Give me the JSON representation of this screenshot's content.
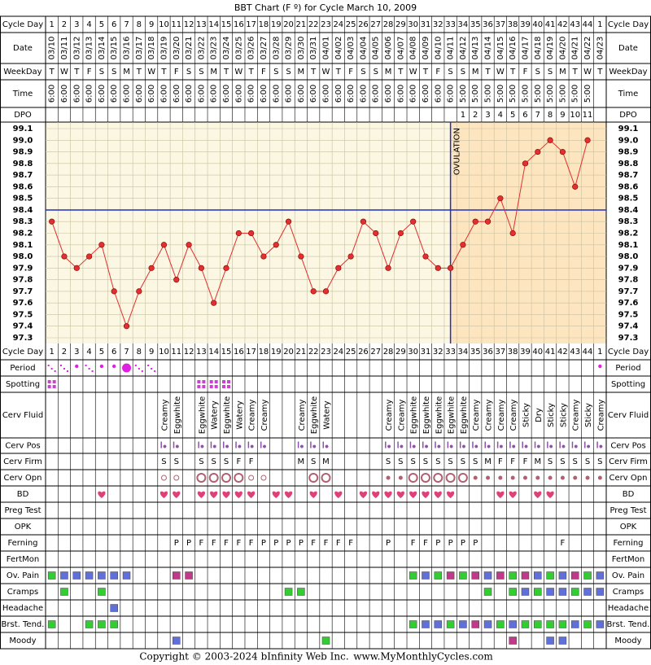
{
  "title": "BBT Chart (F º) for Cycle March 10, 2009",
  "row_labels": {
    "cycle_day": "Cycle Day",
    "date": "Date",
    "weekday": "WeekDay",
    "time": "Time",
    "dpo": "DPO",
    "period": "Period",
    "spotting": "Spotting",
    "cerv_fluid": "Cerv Fluid",
    "cerv_pos": "Cerv Pos",
    "cerv_firm": "Cerv Firm",
    "cerv_opn": "Cerv Opn",
    "bd": "BD",
    "preg_test": "Preg Test",
    "opk": "OPK",
    "ferning": "Ferning",
    "fertmon": "FertMon",
    "ov_pain": "Ov. Pain",
    "cramps": "Cramps",
    "headache": "Headache",
    "brst_tend": "Brst. Tend.",
    "moody": "Moody"
  },
  "columns": {
    "cycle_day": [
      1,
      2,
      3,
      4,
      5,
      6,
      7,
      8,
      9,
      10,
      11,
      12,
      13,
      14,
      15,
      16,
      17,
      18,
      19,
      20,
      21,
      22,
      23,
      24,
      25,
      26,
      27,
      28,
      29,
      30,
      31,
      32,
      33,
      34,
      35,
      36,
      37,
      38,
      39,
      40,
      41,
      42,
      43,
      44,
      1
    ],
    "date": [
      "03/10",
      "03/11",
      "03/12",
      "03/13",
      "03/14",
      "03/15",
      "03/16",
      "03/17",
      "03/18",
      "03/19",
      "03/20",
      "03/21",
      "03/22",
      "03/23",
      "03/24",
      "03/25",
      "03/26",
      "03/27",
      "03/28",
      "03/29",
      "03/30",
      "03/31",
      "04/01",
      "04/02",
      "04/03",
      "04/04",
      "04/05",
      "04/06",
      "04/07",
      "04/08",
      "04/09",
      "04/10",
      "04/11",
      "04/12",
      "04/13",
      "04/14",
      "04/15",
      "04/16",
      "04/17",
      "04/18",
      "04/19",
      "04/20",
      "04/21",
      "04/22",
      "04/23"
    ],
    "weekday": [
      "T",
      "W",
      "T",
      "F",
      "S",
      "S",
      "M",
      "T",
      "W",
      "T",
      "F",
      "S",
      "S",
      "M",
      "T",
      "W",
      "T",
      "F",
      "S",
      "S",
      "M",
      "T",
      "W",
      "T",
      "F",
      "S",
      "S",
      "M",
      "T",
      "W",
      "T",
      "F",
      "S",
      "S",
      "M",
      "T",
      "W",
      "T",
      "F",
      "S",
      "S",
      "M",
      "T",
      "W",
      "T"
    ],
    "time": [
      "6:00",
      "6:00",
      "6:00",
      "6:00",
      "6:00",
      "6:00",
      "6:00",
      "6:00",
      "6:00",
      "6:00",
      "6:00",
      "6:00",
      "6:00",
      "6:00",
      "6:00",
      "6:00",
      "6:00",
      "6:00",
      "6:00",
      "6:00",
      "6:00",
      "6:00",
      "6:00",
      "6:00",
      "6:00",
      "6:00",
      "6:00",
      "6:00",
      "6:00",
      "6:00",
      "6:00",
      "6:00",
      "6:00",
      "5:00",
      "5:00",
      "5:00",
      "5:00",
      "5:00",
      "5:00",
      "5:00",
      "5:00",
      "5:00",
      "5:00",
      "5:00",
      null
    ],
    "dpo": [
      null,
      null,
      null,
      null,
      null,
      null,
      null,
      null,
      null,
      null,
      null,
      null,
      null,
      null,
      null,
      null,
      null,
      null,
      null,
      null,
      null,
      null,
      null,
      null,
      null,
      null,
      null,
      null,
      null,
      null,
      null,
      null,
      null,
      1,
      2,
      3,
      4,
      5,
      6,
      7,
      8,
      9,
      10,
      11,
      null
    ]
  },
  "chart_data": {
    "type": "line",
    "color": "#e03030",
    "categories": [
      "03/10",
      "03/11",
      "03/12",
      "03/13",
      "03/14",
      "03/15",
      "03/16",
      "03/17",
      "03/18",
      "03/19",
      "03/20",
      "03/21",
      "03/22",
      "03/23",
      "03/24",
      "03/25",
      "03/26",
      "03/27",
      "03/28",
      "03/29",
      "03/30",
      "03/31",
      "04/01",
      "04/02",
      "04/03",
      "04/04",
      "04/05",
      "04/06",
      "04/07",
      "04/08",
      "04/09",
      "04/10",
      "04/11",
      "04/12",
      "04/13",
      "04/14",
      "04/15",
      "04/16",
      "04/17",
      "04/18",
      "04/19",
      "04/20",
      "04/21",
      "04/22",
      "04/23"
    ],
    "values": [
      98.3,
      98.0,
      97.9,
      98.0,
      98.1,
      97.7,
      97.4,
      97.7,
      97.9,
      98.1,
      97.8,
      98.1,
      97.9,
      97.6,
      97.9,
      98.2,
      98.2,
      98.0,
      98.1,
      98.3,
      98.0,
      97.7,
      97.7,
      97.9,
      98.0,
      98.3,
      98.2,
      97.9,
      98.2,
      98.3,
      98.0,
      97.9,
      97.9,
      98.1,
      98.3,
      98.3,
      98.5,
      98.2,
      98.8,
      98.9,
      99.0,
      98.9,
      98.6,
      99.0,
      null
    ],
    "ylim": [
      97.3,
      99.1
    ],
    "yticks": [
      99.1,
      {
        "value": 99,
        "label": "99.0"
      },
      98.9,
      98.8,
      98.7,
      98.6,
      98.5,
      98.4,
      98.3,
      98.2,
      98.1,
      {
        "value": 98,
        "label": "98.0"
      },
      97.9,
      97.8,
      97.7,
      97.6,
      97.5,
      97.4,
      97.3
    ],
    "grid": true,
    "coverline": 98.4,
    "coverline_color": "#2030c0",
    "ovulation": {
      "label": "OVULATION",
      "date": "04/11"
    }
  },
  "observations": {
    "period": [
      2,
      2,
      1,
      2,
      1,
      1,
      3,
      2,
      2,
      null,
      null,
      null,
      null,
      null,
      null,
      null,
      null,
      null,
      null,
      null,
      null,
      null,
      null,
      null,
      null,
      null,
      null,
      null,
      null,
      null,
      null,
      null,
      null,
      null,
      null,
      null,
      null,
      null,
      null,
      null,
      null,
      null,
      null,
      null,
      1
    ],
    "spotting": [
      1,
      null,
      null,
      null,
      null,
      null,
      null,
      null,
      null,
      null,
      null,
      null,
      1,
      1,
      1,
      null,
      null,
      null,
      null,
      null,
      null,
      null,
      null,
      null,
      null,
      null,
      null,
      null,
      null,
      null,
      null,
      null,
      null,
      null,
      null,
      null,
      null,
      null,
      null,
      null,
      null,
      null,
      null,
      null,
      null
    ],
    "cerv_fluid": [
      null,
      null,
      null,
      null,
      null,
      null,
      null,
      null,
      null,
      "Creamy",
      "Eggwhite",
      null,
      "Eggwhite",
      "Watery",
      "Eggwhite",
      "Watery",
      "Creamy",
      "Creamy",
      null,
      null,
      "Creamy",
      "Eggwhite",
      "Watery",
      null,
      null,
      null,
      null,
      "Creamy",
      "Creamy",
      "Eggwhite",
      "Eggwhite",
      "Eggwhite",
      "Eggwhite",
      "Eggwhite",
      "Creamy",
      "Creamy",
      "Creamy",
      "Creamy",
      "Sticky",
      "Dry",
      "Sticky",
      "Sticky",
      "Creamy",
      "Sticky",
      "Creamy"
    ],
    "cerv_pos": [
      null,
      null,
      null,
      null,
      null,
      null,
      null,
      null,
      null,
      1,
      1,
      null,
      1,
      1,
      1,
      1,
      1,
      1,
      null,
      null,
      1,
      1,
      1,
      null,
      null,
      null,
      null,
      1,
      1,
      1,
      1,
      1,
      1,
      1,
      1,
      1,
      1,
      1,
      1,
      1,
      1,
      1,
      1,
      1,
      1
    ],
    "cerv_firm": [
      null,
      null,
      null,
      null,
      null,
      null,
      null,
      null,
      null,
      "S",
      "S",
      null,
      "S",
      "S",
      "S",
      "F",
      "F",
      null,
      null,
      null,
      "M",
      "S",
      "M",
      null,
      null,
      null,
      null,
      "S",
      "S",
      "S",
      "S",
      "S",
      "S",
      "S",
      "S",
      "M",
      "F",
      "F",
      "F",
      "M",
      "S",
      "S",
      "S",
      "S",
      "S"
    ],
    "cerv_opn": [
      null,
      null,
      null,
      null,
      null,
      null,
      null,
      null,
      null,
      2,
      2,
      null,
      3,
      3,
      3,
      3,
      2,
      2,
      null,
      null,
      null,
      3,
      3,
      null,
      null,
      null,
      null,
      1,
      1,
      3,
      3,
      3,
      3,
      3,
      1,
      1,
      1,
      1,
      1,
      1,
      1,
      1,
      1,
      1,
      1
    ],
    "bd": [
      null,
      null,
      null,
      null,
      1,
      null,
      null,
      null,
      null,
      1,
      1,
      null,
      1,
      1,
      1,
      1,
      1,
      null,
      1,
      1,
      null,
      1,
      null,
      1,
      null,
      1,
      1,
      1,
      1,
      1,
      1,
      1,
      1,
      null,
      null,
      null,
      1,
      1,
      null,
      1,
      1,
      null,
      null,
      null,
      null
    ],
    "ferning": [
      null,
      null,
      null,
      null,
      null,
      null,
      null,
      null,
      null,
      null,
      "P",
      "P",
      "F",
      "F",
      "F",
      "F",
      "F",
      "P",
      "P",
      "P",
      "P",
      "F",
      "F",
      "F",
      "F",
      null,
      null,
      "P",
      null,
      "F",
      "F",
      "P",
      "P",
      "P",
      "P",
      null,
      null,
      null,
      null,
      null,
      null,
      "F",
      null,
      null,
      null
    ],
    "ov_pain": [
      "#33cc33",
      "#6070d8",
      "#6070d8",
      "#6070d8",
      "#6070d8",
      "#6070d8",
      "#6070d8",
      null,
      null,
      null,
      "#c03a8a",
      "#c03a8a",
      null,
      null,
      null,
      null,
      null,
      null,
      null,
      null,
      null,
      null,
      null,
      null,
      null,
      null,
      null,
      null,
      null,
      "#33cc33",
      "#6070d8",
      "#33cc33",
      "#c03a8a",
      "#33cc33",
      "#c03a8a",
      "#6070d8",
      "#c03a8a",
      "#33cc33",
      "#c03a8a",
      "#6070d8",
      "#33cc33",
      "#6070d8",
      "#c03a8a",
      "#33cc33",
      "#6070d8"
    ],
    "cramps": [
      null,
      "#33cc33",
      null,
      null,
      "#33cc33",
      null,
      null,
      null,
      null,
      null,
      null,
      null,
      null,
      null,
      null,
      null,
      null,
      null,
      null,
      "#33cc33",
      "#33cc33",
      null,
      null,
      null,
      null,
      null,
      null,
      null,
      null,
      null,
      null,
      null,
      null,
      null,
      null,
      "#33cc33",
      null,
      "#33cc33",
      "#6070d8",
      "#33cc33",
      "#6070d8",
      "#6070d8",
      "#33cc33",
      "#6070d8",
      "#6070d8"
    ],
    "headache": [
      null,
      null,
      null,
      null,
      null,
      "#6070d8",
      null,
      null,
      null,
      null,
      null,
      null,
      null,
      null,
      null,
      null,
      null,
      null,
      null,
      null,
      null,
      null,
      null,
      null,
      null,
      null,
      null,
      null,
      null,
      null,
      null,
      null,
      null,
      null,
      null,
      null,
      null,
      null,
      null,
      null,
      null,
      null,
      null,
      null,
      null
    ],
    "brst_tend": [
      "#33cc33",
      null,
      null,
      "#33cc33",
      "#33cc33",
      "#33cc33",
      null,
      null,
      null,
      null,
      null,
      null,
      null,
      null,
      null,
      null,
      null,
      null,
      null,
      null,
      null,
      null,
      null,
      null,
      null,
      null,
      null,
      null,
      null,
      "#33cc33",
      "#6070d8",
      "#6070d8",
      "#33cc33",
      "#6070d8",
      "#c03a8a",
      "#6070d8",
      "#33cc33",
      "#6070d8",
      "#33cc33",
      "#33cc33",
      "#33cc33",
      "#33cc33",
      "#6070d8",
      "#33cc33",
      "#6070d8"
    ],
    "moody": [
      null,
      null,
      null,
      null,
      null,
      null,
      null,
      null,
      null,
      null,
      "#6070d8",
      null,
      null,
      null,
      null,
      null,
      null,
      null,
      null,
      null,
      null,
      null,
      "#33cc33",
      null,
      null,
      null,
      null,
      null,
      null,
      null,
      null,
      null,
      null,
      null,
      null,
      null,
      null,
      "#c03a8a",
      null,
      null,
      "#6070d8",
      "#6070d8",
      null,
      null,
      null
    ]
  },
  "copyright": "Copyright © 2003-2024 bInfinity Web Inc.",
  "site": "www.MyMonthlyCycles.com"
}
